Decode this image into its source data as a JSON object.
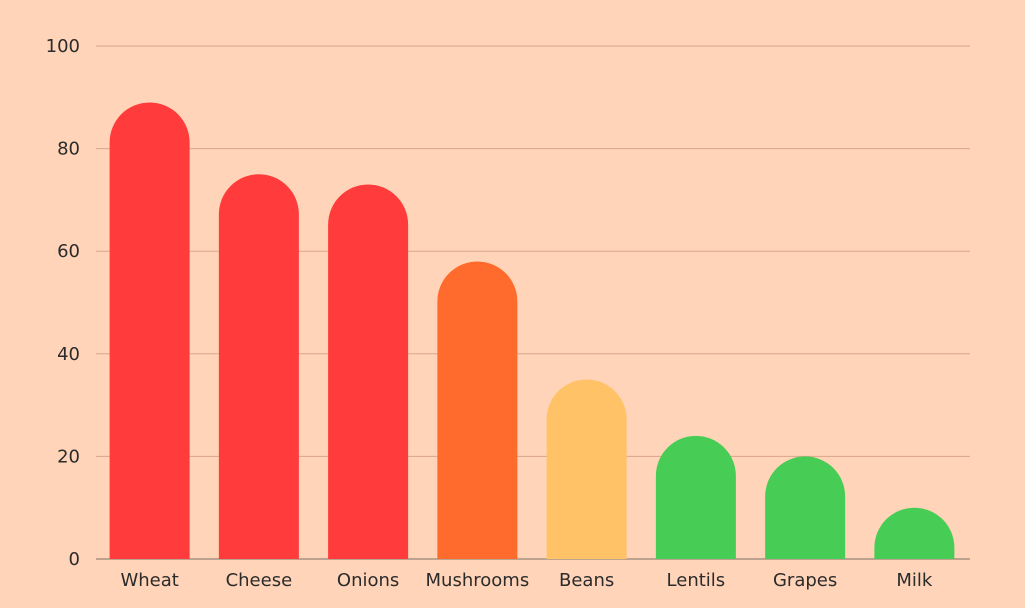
{
  "chart_data": {
    "type": "bar",
    "title": "",
    "xlabel": "",
    "ylabel": "",
    "categories": [
      "Wheat",
      "Cheese",
      "Onions",
      "Mushrooms",
      "Beans",
      "Lentils",
      "Grapes",
      "Milk"
    ],
    "values": [
      89,
      75,
      73,
      58,
      35,
      24,
      20,
      10
    ],
    "ylim": [
      0,
      100
    ],
    "yticks": [
      "0",
      "20",
      "40",
      "60",
      "80",
      "100"
    ],
    "grid": true,
    "legend": "none",
    "colors": [
      "#FF3B3B",
      "#FF3B3B",
      "#FF3B3B",
      "#FF6B2C",
      "#FFC266",
      "#47CC55",
      "#47CC55",
      "#47CC55"
    ],
    "background": "#FFD4B8",
    "gridline_color": "#D9A58A",
    "axis_color": "#A89080"
  }
}
